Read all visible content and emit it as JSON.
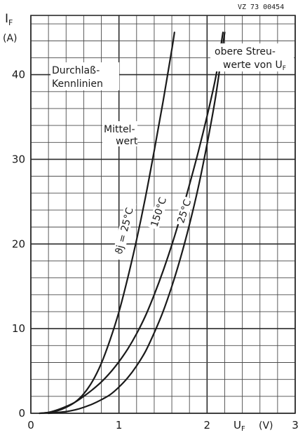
{
  "figure_ref": "VZ 73 00454",
  "chart_data": {
    "type": "line",
    "title": "",
    "annotation_title": [
      "Durchlaß-",
      "Kennlinien"
    ],
    "annotation_mittelwert": [
      "Mittel-",
      "wert"
    ],
    "annotation_streuwerte": [
      "obere Streu-",
      "werte von U",
      "F"
    ],
    "xlabel": "U",
    "xlabel_sub": "F",
    "xunit": "(V)",
    "ylabel": "I",
    "ylabel_sub": "F",
    "yunit": "(A)",
    "xlim": [
      0,
      3
    ],
    "ylim": [
      0,
      47
    ],
    "x_ticks": [
      0,
      1,
      2,
      3
    ],
    "x_tick_labels": [
      "0",
      "1",
      "2",
      "3"
    ],
    "y_ticks": [
      0,
      10,
      20,
      30,
      40
    ],
    "y_tick_labels": [
      "0",
      "10",
      "20",
      "30",
      "40"
    ],
    "x_minor_step": 0.2,
    "y_minor_step": 2,
    "grid": true,
    "series": [
      {
        "name": "ϑj = 25°C",
        "x": [
          0.1,
          0.2,
          0.3,
          0.4,
          0.5,
          0.6,
          0.7,
          0.8,
          0.9,
          1.0,
          1.1,
          1.2,
          1.3,
          1.4,
          1.5,
          1.6,
          1.63
        ],
        "y": [
          0,
          0.1,
          0.3,
          0.7,
          1.3,
          2.3,
          3.8,
          5.9,
          8.7,
          12.0,
          16.0,
          20.5,
          25.5,
          31.0,
          36.8,
          43.0,
          45.0
        ]
      },
      {
        "name": "150°C",
        "x": [
          0.1,
          0.2,
          0.3,
          0.4,
          0.5,
          0.6,
          0.7,
          0.8,
          0.9,
          1.0,
          1.1,
          1.2,
          1.3,
          1.4,
          1.5,
          1.6,
          1.7,
          1.8,
          1.9,
          2.0,
          2.1,
          2.18
        ],
        "y": [
          0,
          0.1,
          0.4,
          0.8,
          1.3,
          2.0,
          2.8,
          3.7,
          4.8,
          6.1,
          7.6,
          9.4,
          11.5,
          14.0,
          16.8,
          19.9,
          23.3,
          27.0,
          30.9,
          35.1,
          39.8,
          45.0
        ]
      },
      {
        "name": "25°C",
        "x": [
          0.2,
          0.3,
          0.4,
          0.5,
          0.6,
          0.7,
          0.8,
          0.9,
          1.0,
          1.1,
          1.2,
          1.3,
          1.4,
          1.5,
          1.6,
          1.7,
          1.8,
          1.9,
          2.0,
          2.1,
          2.2
        ],
        "y": [
          0,
          0.1,
          0.2,
          0.4,
          0.7,
          1.1,
          1.6,
          2.2,
          3.1,
          4.2,
          5.6,
          7.3,
          9.5,
          12.0,
          15.0,
          18.4,
          22.3,
          26.7,
          31.8,
          37.6,
          45.0
        ]
      }
    ],
    "curve_labels": [
      {
        "text": "ϑj = 25°C",
        "at_x": 1.08,
        "at_y": 21.5,
        "angle": -76
      },
      {
        "text": "150°C",
        "at_x": 1.47,
        "at_y": 23.7,
        "angle": -72
      },
      {
        "text": "25°C",
        "at_x": 1.76,
        "at_y": 23.8,
        "angle": -72
      }
    ]
  }
}
